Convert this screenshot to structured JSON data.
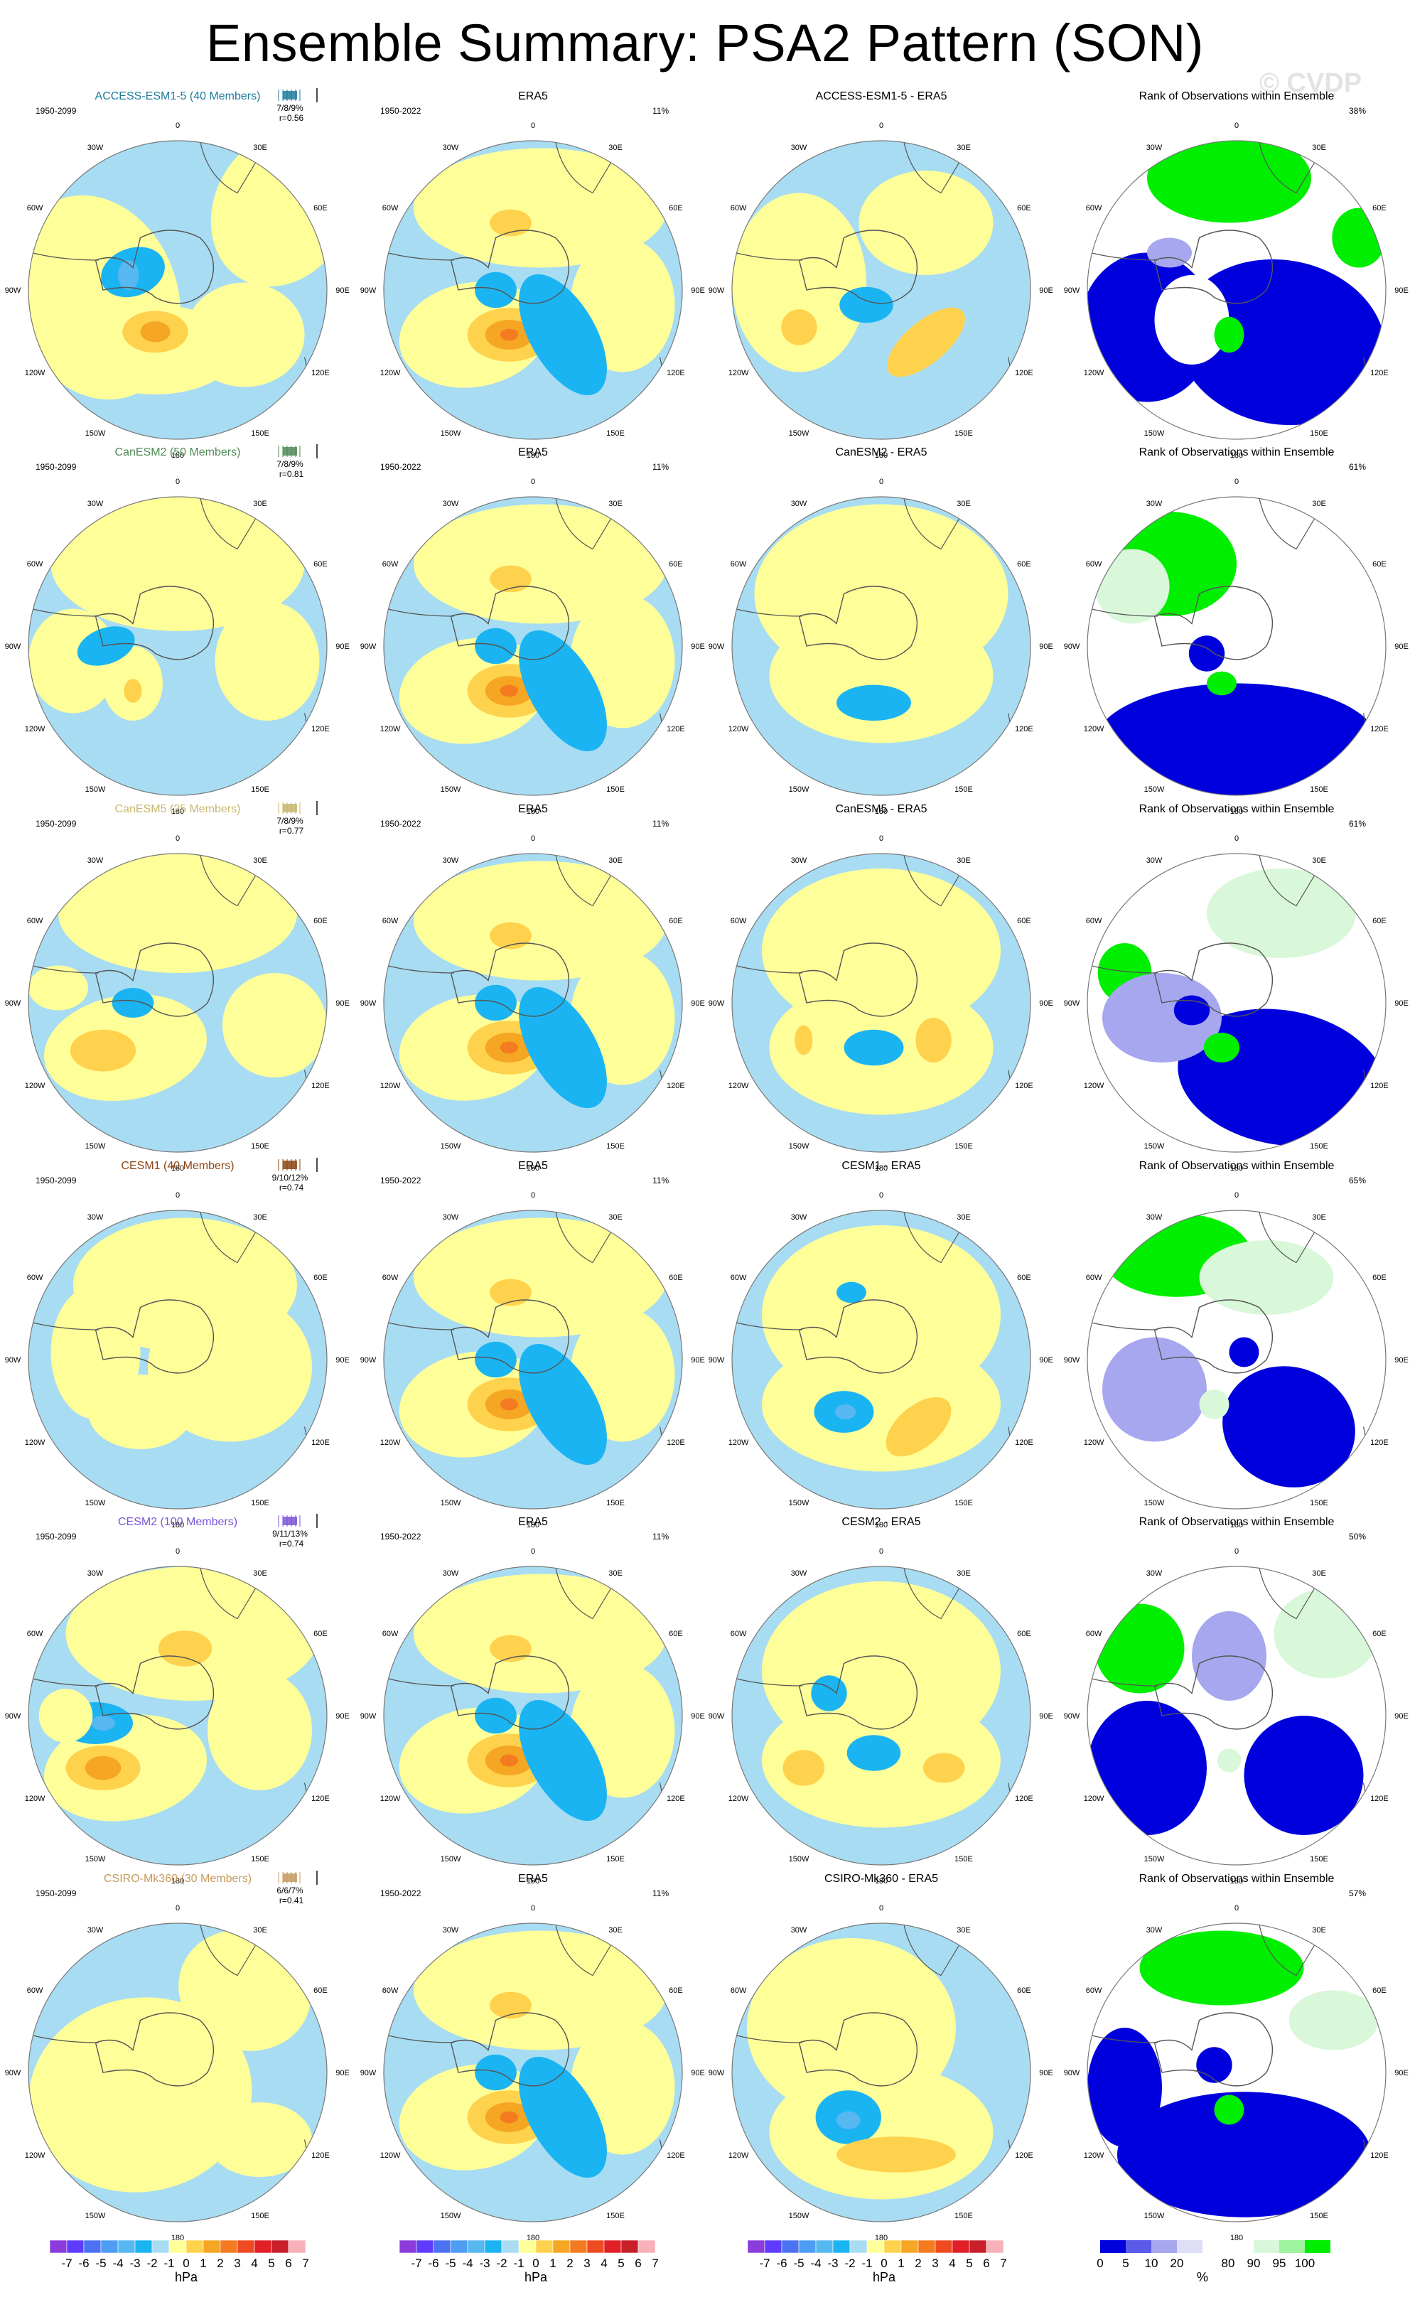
{
  "figure": {
    "title": "Ensemble Summary: PSA2 Pattern (SON)",
    "watermark": "© CVDP"
  },
  "colors": {
    "model_title_colors": [
      "#1e7b9c",
      "#4f8a55",
      "#c7b66b",
      "#8b4513",
      "#7b55d8",
      "#c59a5e"
    ],
    "mean_palette": [
      "#8c3bdc",
      "#5f3bff",
      "#4a72f2",
      "#4f9df2",
      "#57b7f0",
      "#1bb4f2",
      "#a8dcf2",
      "#ffff99",
      "#ffd24d",
      "#f5a623",
      "#f47b20",
      "#ef4b22",
      "#e01f26",
      "#c81f2b",
      "#f8b1b8"
    ],
    "rank_palette": [
      "#0000dd",
      "#5b5bea",
      "#a7a7ef",
      "#dedef7",
      "#ffffff",
      "#d9f7d9",
      "#9ef39e",
      "#00ee00"
    ]
  },
  "rows": [
    {
      "model": "ACCESS-ESM1-5 (40 Members)",
      "model_period": "1950-2099",
      "model_stats": "7/8/9%",
      "model_r": "r=0.56",
      "obs_title": "ERA5",
      "obs_period": "1950-2022",
      "obs_pct": "11%",
      "diff_title": "ACCESS-ESM1-5 - ERA5",
      "rank_title": "Rank of Observations within Ensemble",
      "rank_pct": "38%"
    },
    {
      "model": "CanESM2 (50 Members)",
      "model_period": "1950-2099",
      "model_stats": "7/8/9%",
      "model_r": "r=0.81",
      "obs_title": "ERA5",
      "obs_period": "1950-2022",
      "obs_pct": "11%",
      "diff_title": "CanESM2 - ERA5",
      "rank_title": "Rank of Observations within Ensemble",
      "rank_pct": "61%"
    },
    {
      "model": "CanESM5 (25 Members)",
      "model_period": "1950-2099",
      "model_stats": "7/8/9%",
      "model_r": "r=0.77",
      "obs_title": "ERA5",
      "obs_period": "1950-2022",
      "obs_pct": "11%",
      "diff_title": "CanESM5 - ERA5",
      "rank_title": "Rank of Observations within Ensemble",
      "rank_pct": "61%"
    },
    {
      "model": "CESM1 (40 Members)",
      "model_period": "1950-2099",
      "model_stats": "9/10/12%",
      "model_r": "r=0.74",
      "obs_title": "ERA5",
      "obs_period": "1950-2022",
      "obs_pct": "11%",
      "diff_title": "CESM1 - ERA5",
      "rank_title": "Rank of Observations within Ensemble",
      "rank_pct": "65%"
    },
    {
      "model": "CESM2 (100 Members)",
      "model_period": "1950-2099",
      "model_stats": "9/11/13%",
      "model_r": "r=0.74",
      "obs_title": "ERA5",
      "obs_period": "1950-2022",
      "obs_pct": "11%",
      "diff_title": "CESM2 - ERA5",
      "rank_title": "Rank of Observations within Ensemble",
      "rank_pct": "50%"
    },
    {
      "model": "CSIRO-Mk360 (30 Members)",
      "model_period": "1950-2099",
      "model_stats": "6/6/7%",
      "model_r": "r=0.41",
      "obs_title": "ERA5",
      "obs_period": "1950-2022",
      "obs_pct": "11%",
      "diff_title": "CSIRO-Mk360 - ERA5",
      "rank_title": "Rank of Observations within Ensemble",
      "rank_pct": "57%"
    }
  ],
  "longitude_labels": [
    "0",
    "30E",
    "60E",
    "90E",
    "120E",
    "150E",
    "180",
    "150W",
    "120W",
    "90W",
    "60W",
    "30W"
  ],
  "colorbars": {
    "hpa_ticks": [
      "-7",
      "-6",
      "-5",
      "-4",
      "-3",
      "-2",
      "-1",
      "0",
      "1",
      "2",
      "3",
      "4",
      "5",
      "6",
      "7"
    ],
    "hpa_unit": "hPa",
    "rank_ticks": [
      "0",
      "5",
      "10",
      "20",
      "80",
      "90",
      "95",
      "100"
    ],
    "rank_unit": "%"
  },
  "chart_data": {
    "type": "heatmap",
    "title": "Ensemble Summary: PSA2 Pattern (SON)",
    "projection": "south polar stereographic",
    "columns": [
      "model ensemble mean",
      "ERA5",
      "model minus ERA5",
      "rank of observations within ensemble"
    ],
    "hpa_levels": [
      -7,
      -6,
      -5,
      -4,
      -3,
      -2,
      -1,
      0,
      1,
      2,
      3,
      4,
      5,
      6,
      7
    ],
    "rank_levels": [
      0,
      5,
      10,
      20,
      80,
      90,
      95,
      100
    ],
    "rows": [
      {
        "model": "ACCESS-ESM1-5",
        "members": 40,
        "stats": "7/8/9%",
        "r": 0.56,
        "obs_pct": 11,
        "rank_pct": 38
      },
      {
        "model": "CanESM2",
        "members": 50,
        "stats": "7/8/9%",
        "r": 0.81,
        "obs_pct": 11,
        "rank_pct": 61
      },
      {
        "model": "CanESM5",
        "members": 25,
        "stats": "7/8/9%",
        "r": 0.77,
        "obs_pct": 11,
        "rank_pct": 61
      },
      {
        "model": "CESM1",
        "members": 40,
        "stats": "9/10/12%",
        "r": 0.74,
        "obs_pct": 11,
        "rank_pct": 65
      },
      {
        "model": "CESM2",
        "members": 100,
        "stats": "9/11/13%",
        "r": 0.74,
        "obs_pct": 11,
        "rank_pct": 50
      },
      {
        "model": "CSIRO-Mk360",
        "members": 30,
        "stats": "6/6/7%",
        "r": 0.41,
        "obs_pct": 11,
        "rank_pct": 57
      }
    ]
  }
}
